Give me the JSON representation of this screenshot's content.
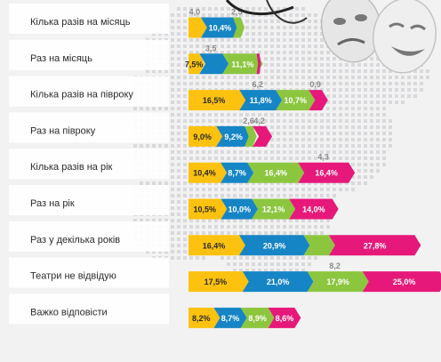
{
  "chart_data": {
    "type": "bar",
    "stacked": true,
    "orientation": "horizontal",
    "categories": [
      "Кілька разів на місяць",
      "Раз на місяць",
      "Кілька разів на півроку",
      "Раз на півроку",
      "Кілька разів на рік",
      "Раз на рік",
      "Раз у декілька років",
      "Театри не відвідую",
      "Важко відповісти"
    ],
    "series": [
      {
        "values": [
          4.0,
          3.5,
          16.5,
          9.0,
          10.4,
          10.5,
          16.4,
          17.5,
          8.2
        ]
      },
      {
        "values": [
          10.4,
          7.5,
          11.8,
          9.2,
          8.7,
          10.0,
          20.9,
          21.0,
          8.7
        ]
      },
      {
        "values": [
          2.5,
          11.1,
          10.7,
          2.6,
          16.4,
          12.1,
          8.2,
          17.9,
          8.9
        ]
      },
      {
        "values": [
          null,
          0.9,
          4.2,
          4.3,
          16.4,
          14.0,
          27.8,
          25.0,
          8.6
        ]
      }
    ],
    "segment_labels": [
      [
        null,
        "10,4",
        null,
        null
      ],
      [
        "7,5",
        null,
        "11,1",
        null
      ],
      [
        "16,5",
        "11,8",
        "10,7",
        null
      ],
      [
        "9,0",
        "9,2",
        null,
        null
      ],
      [
        "10,4",
        "8,7",
        "16,4",
        "16,4"
      ],
      [
        "10,5",
        "10,0",
        "12,1",
        "14,0"
      ],
      [
        "16,4",
        "20,9",
        null,
        "27,8"
      ],
      [
        "17,5",
        "21,0",
        "17,9",
        "25,0"
      ],
      [
        "8,2",
        "8,7",
        "8,9",
        "8,6"
      ]
    ],
    "above_labels": [
      [
        "4,0",
        null,
        "2,5",
        null
      ],
      [
        null,
        "3,5",
        null,
        null
      ],
      [
        null,
        "6,2",
        null,
        "0,9"
      ],
      [
        null,
        null,
        "2,6",
        "4,2"
      ],
      [
        null,
        null,
        null,
        "4,3"
      ],
      [
        null,
        null,
        null,
        null
      ],
      [
        null,
        null,
        null,
        null
      ],
      [
        null,
        null,
        "8,2",
        null
      ],
      [
        null,
        null,
        null,
        null
      ]
    ],
    "colors": [
      "#fcc20f",
      "#1685c5",
      "#8cc63f",
      "#e6197a"
    ],
    "xlim": [
      0,
      82
    ]
  }
}
